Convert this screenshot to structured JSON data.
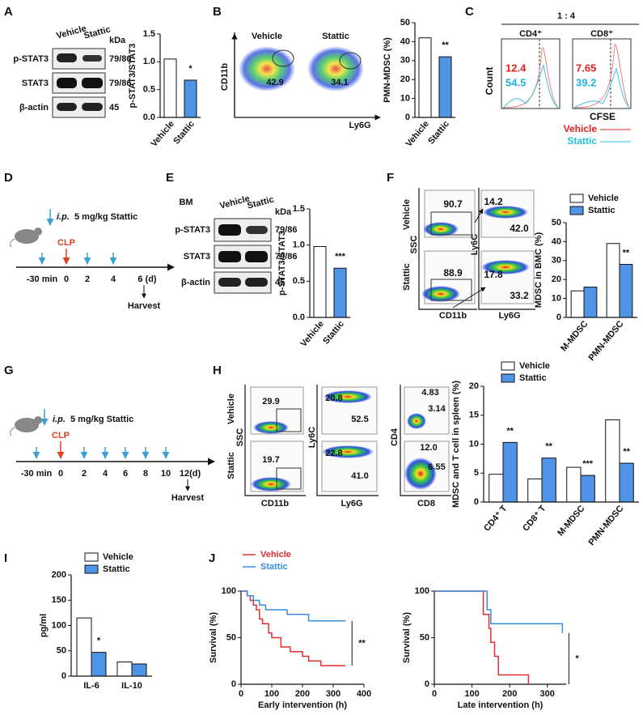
{
  "panels": {
    "letters": [
      "A",
      "B",
      "C",
      "D",
      "E",
      "F",
      "G",
      "H",
      "I",
      "J"
    ],
    "A": {
      "cols": [
        "Vehicle",
        "Stattic"
      ],
      "unit": "kDa",
      "rows": [
        "p-STAT3",
        "STAT3",
        "β-actin"
      ],
      "sizes": [
        "79/86",
        "79/86",
        "45"
      ]
    },
    "B": {
      "titles": [
        "Vehicle",
        "Stattic"
      ],
      "y_axis": "CD11b",
      "x_axis": "Ly6G",
      "gates": [
        "42.9",
        "34.1"
      ]
    },
    "C": {
      "ratio": "1 : 4",
      "groups": [
        "CD4⁺",
        "CD8⁺"
      ],
      "cd4": [
        "12.4",
        "54.5"
      ],
      "cd8": [
        "7.65",
        "39.2"
      ],
      "y_axis": "Count",
      "x_axis": "CFSE",
      "legend": [
        "Vehicle",
        "Stattic"
      ]
    },
    "D": {
      "route": "i.p.",
      "dose": "5 mg/kg Stattic",
      "event": "CLP",
      "times": [
        "-30 min",
        "0",
        "2",
        "4",
        "6 (d)"
      ],
      "end": "Harvest"
    },
    "E": {
      "tissue": "BM",
      "cols": [
        "Vehicle",
        "Stattic"
      ],
      "unit": "kDa",
      "rows": [
        "p-STAT3",
        "STAT3",
        "β-actin"
      ],
      "sizes": [
        "79/86",
        "79/86",
        "45"
      ]
    },
    "F": {
      "rows": [
        "Vehicle",
        "Stattic"
      ],
      "axes": [
        "SSC",
        "CD11b",
        "Ly6C",
        "Ly6G"
      ],
      "gates": [
        "90.7",
        "88.9",
        "14.2",
        "42.0",
        "17.8",
        "33.2"
      ]
    },
    "G": {
      "route": "i.p.",
      "dose": "5 mg/kg Stattic",
      "event": "CLP",
      "times": [
        "-30 min",
        "0",
        "2",
        "4",
        "6",
        "8",
        "10",
        "12(d)"
      ],
      "end": "Harvest"
    },
    "H": {
      "rows": [
        "Vehicle",
        "Stattic"
      ],
      "axes": [
        "SSC",
        "CD11b",
        "Ly6C",
        "Ly6G",
        "CD4",
        "CD8"
      ],
      "gates": [
        "29.9",
        "19.7",
        "20.8",
        "52.5",
        "22.8",
        "41.0",
        "4.83",
        "3.14",
        "12.0",
        "6.55"
      ]
    }
  },
  "chart_data": [
    {
      "type": "bar",
      "ylabel": "p-STAT3/STAT3",
      "categories": [
        "Vehicle",
        "Stattic"
      ],
      "values": [
        1.05,
        0.67
      ],
      "colors": [
        "#ffffff",
        "#4f94e6"
      ],
      "ylim": [
        0,
        1.5
      ],
      "yticks": [
        {
          "value": 0,
          "label": "0.0"
        },
        0.5,
        {
          "value": 1,
          "label": "1.0"
        },
        1.5
      ],
      "annotations": [
        null,
        "*"
      ]
    },
    {
      "type": "bar",
      "ylabel": "PMN-MDSC (%)",
      "categories": [
        "Vehicle",
        "Stattic"
      ],
      "values": [
        42,
        32
      ],
      "colors": [
        "#ffffff",
        "#4f94e6"
      ],
      "ylim": [
        0,
        50
      ],
      "yticks": [
        0,
        10,
        20,
        30,
        40,
        50
      ],
      "annotations": [
        null,
        "**"
      ]
    },
    {
      "type": "bar",
      "ylabel": "p-STAT3/STAT3",
      "categories": [
        "Vehicle",
        "Stattic"
      ],
      "values": [
        0.98,
        0.68
      ],
      "colors": [
        "#ffffff",
        "#4f94e6"
      ],
      "ylim": [
        0,
        1.5
      ],
      "yticks": [
        {
          "value": 0,
          "label": "0.0"
        },
        0.5,
        {
          "value": 1,
          "label": "1.0"
        },
        1.5
      ],
      "annotations": [
        null,
        "***"
      ]
    },
    {
      "type": "bar",
      "ylabel": "MDSC in BMC (%)",
      "categories": [
        "M-MDSC",
        "PMN-MDSC"
      ],
      "series": [
        {
          "name": "Vehicle",
          "color": "#ffffff",
          "values": [
            14,
            39
          ]
        },
        {
          "name": "Stattic",
          "color": "#4f94e6",
          "values": [
            16,
            28
          ]
        }
      ],
      "ylim": [
        0,
        50
      ],
      "yticks": [
        0,
        10,
        20,
        30,
        40,
        50
      ],
      "annotations": [
        null,
        "**"
      ]
    },
    {
      "type": "bar",
      "ylabel": "MDSC and T cell in spleen (%)",
      "categories": [
        "CD4⁺ T",
        "CD8⁺ T",
        "M-MDSC",
        "PMN-MDSC"
      ],
      "series": [
        {
          "name": "Vehicle",
          "color": "#ffffff",
          "values": [
            4.8,
            4.0,
            6.0,
            14.2
          ]
        },
        {
          "name": "Stattic",
          "color": "#4f94e6",
          "values": [
            10.3,
            7.6,
            4.6,
            6.7
          ]
        }
      ],
      "ylim": [
        0,
        20
      ],
      "yticks": [
        0,
        5,
        10,
        15,
        20
      ],
      "annotations": [
        "**",
        "**",
        "***",
        "**"
      ]
    },
    {
      "type": "bar",
      "ylabel": "pg/ml",
      "categories": [
        "IL-6",
        "IL-10"
      ],
      "series": [
        {
          "name": "Vehicle",
          "color": "#ffffff",
          "values": [
            115,
            28
          ]
        },
        {
          "name": "Stattic",
          "color": "#4f94e6",
          "values": [
            47,
            24
          ]
        }
      ],
      "ylim": [
        0,
        200
      ],
      "yticks": [
        0,
        50,
        100,
        150,
        200
      ],
      "annotations": [
        "*",
        null
      ]
    },
    {
      "type": "line",
      "xlabel": "Early intervention (h)",
      "ylabel": "Survival (%)",
      "series": [
        {
          "name": "Vehicle",
          "color": "#e03030",
          "x": [
            0,
            20,
            30,
            40,
            50,
            60,
            70,
            90,
            100,
            130,
            160,
            200,
            220,
            260,
            340
          ],
          "values": [
            100,
            95,
            90,
            85,
            80,
            70,
            65,
            55,
            50,
            40,
            35,
            30,
            25,
            20,
            20
          ]
        },
        {
          "name": "Stattic",
          "color": "#3a8ee0",
          "x": [
            0,
            20,
            40,
            60,
            80,
            150,
            220,
            340
          ],
          "values": [
            100,
            95,
            90,
            85,
            80,
            75,
            68,
            68
          ]
        }
      ],
      "xlim": [
        0,
        400
      ],
      "xticks": [
        0,
        100,
        200,
        300,
        400
      ],
      "ylim": [
        0,
        100
      ],
      "yticks": [
        0,
        50,
        100
      ],
      "significance": "**"
    },
    {
      "type": "line",
      "xlabel": "Late intervention (h)",
      "ylabel": "Survival (%)",
      "series": [
        {
          "color": "#e03030",
          "x": [
            0,
            100,
            130,
            145,
            150,
            160,
            170,
            250
          ],
          "values": [
            100,
            100,
            75,
            60,
            45,
            30,
            10,
            0
          ]
        },
        {
          "color": "#3a8ee0",
          "x": [
            0,
            100,
            140,
            150,
            340
          ],
          "values": [
            100,
            100,
            80,
            65,
            55
          ]
        }
      ],
      "xlim": [
        0,
        350
      ],
      "xticks": [
        0,
        100,
        200,
        300
      ],
      "ylim": [
        0,
        100
      ],
      "yticks": [
        0,
        50,
        100
      ],
      "significance": "*"
    }
  ]
}
